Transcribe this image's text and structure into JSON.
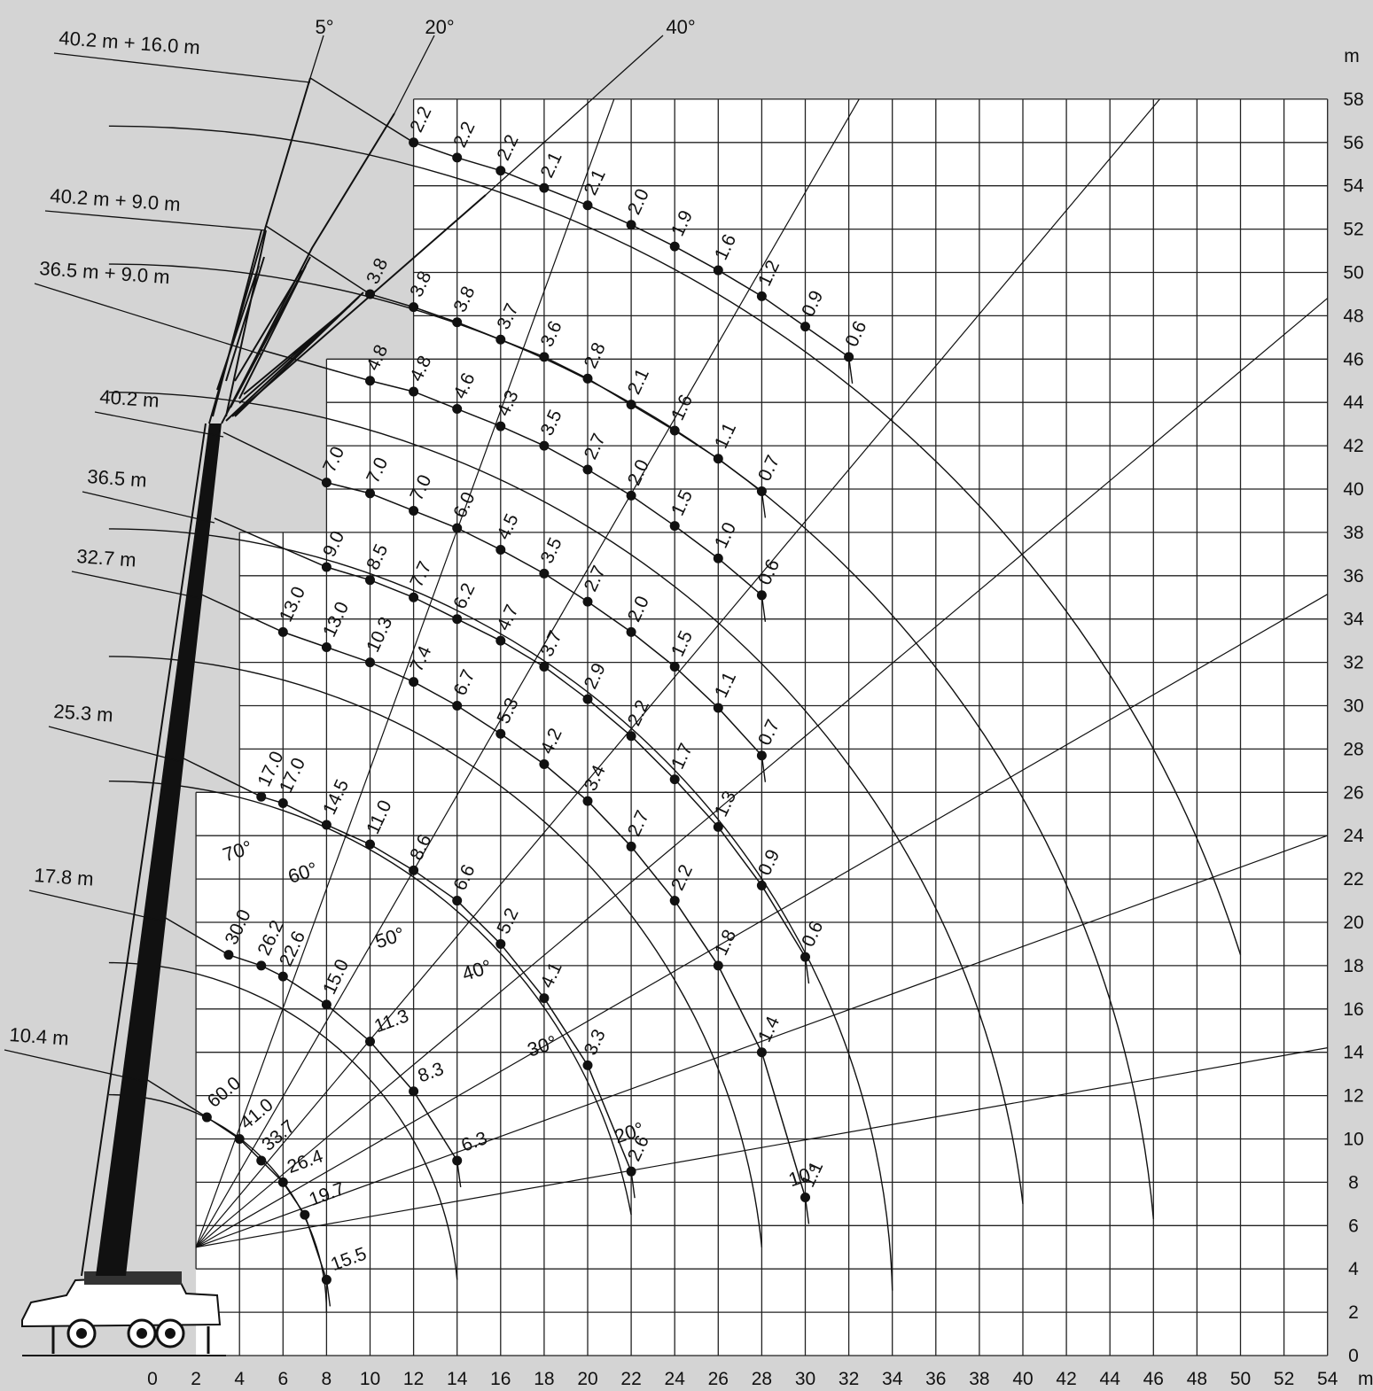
{
  "chart_data": {
    "type": "scatter",
    "title": "",
    "x_unit": "m",
    "y_unit": "m",
    "xlim": [
      0,
      54
    ],
    "ylim": [
      0,
      58
    ],
    "x_ticks": [
      "0",
      "2",
      "4",
      "6",
      "8",
      "10",
      "12",
      "14",
      "16",
      "18",
      "20",
      "22",
      "24",
      "26",
      "28",
      "30",
      "32",
      "34",
      "36",
      "38",
      "40",
      "42",
      "44",
      "46",
      "48",
      "50",
      "52",
      "54"
    ],
    "y_ticks": [
      "0",
      "2",
      "4",
      "6",
      "8",
      "10",
      "12",
      "14",
      "16",
      "18",
      "20",
      "22",
      "24",
      "26",
      "28",
      "30",
      "32",
      "34",
      "36",
      "38",
      "40",
      "42",
      "44",
      "46",
      "48",
      "50",
      "52",
      "54",
      "56",
      "58"
    ],
    "grid": true,
    "angle_lines": [
      {
        "label": "10°",
        "x": 30,
        "y": 8
      },
      {
        "label": "20°",
        "x": 22,
        "y": 10
      },
      {
        "label": "30°",
        "x": 18,
        "y": 14
      },
      {
        "label": "40°",
        "x": 15,
        "y": 17.5
      },
      {
        "label": "50°",
        "x": 11,
        "y": 19
      },
      {
        "label": "60°",
        "x": 7,
        "y": 22
      },
      {
        "label": "70°",
        "x": 4,
        "y": 23
      }
    ],
    "jib_angle_labels": [
      {
        "label": "5°",
        "x": 8,
        "y": 62
      },
      {
        "label": "20°",
        "x": 13,
        "y": 62
      },
      {
        "label": "40°",
        "x": 25,
        "y": 62
      }
    ],
    "series": [
      {
        "name": "10.4 m",
        "points": [
          {
            "x": 2.5,
            "y": 11,
            "label": "60.0"
          },
          {
            "x": 4,
            "y": 10,
            "label": "41.0"
          },
          {
            "x": 5,
            "y": 9,
            "label": "33.7"
          },
          {
            "x": 6,
            "y": 8,
            "label": "26.4"
          },
          {
            "x": 7,
            "y": 6.5,
            "label": "19.7"
          },
          {
            "x": 8,
            "y": 3.5,
            "label": "15.5"
          }
        ]
      },
      {
        "name": "17.8 m",
        "points": [
          {
            "x": 3.5,
            "y": 18.5,
            "label": "30.0"
          },
          {
            "x": 5,
            "y": 18,
            "label": "26.2"
          },
          {
            "x": 6,
            "y": 17.5,
            "label": "22.6"
          },
          {
            "x": 8,
            "y": 16.2,
            "label": "15.0"
          },
          {
            "x": 10,
            "y": 14.5,
            "label": "11.3"
          },
          {
            "x": 12,
            "y": 12.2,
            "label": "8.3"
          },
          {
            "x": 14,
            "y": 9,
            "label": "6.3"
          }
        ]
      },
      {
        "name": "25.3 m",
        "points": [
          {
            "x": 5,
            "y": 25.8,
            "label": "17.0"
          },
          {
            "x": 6,
            "y": 25.5,
            "label": "17.0"
          },
          {
            "x": 8,
            "y": 24.5,
            "label": "14.5"
          },
          {
            "x": 10,
            "y": 23.6,
            "label": "11.0"
          },
          {
            "x": 12,
            "y": 22.4,
            "label": "8.6"
          },
          {
            "x": 14,
            "y": 21,
            "label": "6.6"
          },
          {
            "x": 16,
            "y": 19,
            "label": "5.2"
          },
          {
            "x": 18,
            "y": 16.5,
            "label": "4.1"
          },
          {
            "x": 20,
            "y": 13.4,
            "label": "3.3"
          },
          {
            "x": 22,
            "y": 8.5,
            "label": "2.6"
          }
        ]
      },
      {
        "name": "32.7 m",
        "points": [
          {
            "x": 6,
            "y": 33.4,
            "label": "13.0"
          },
          {
            "x": 8,
            "y": 32.7,
            "label": "13.0"
          },
          {
            "x": 10,
            "y": 32,
            "label": "10.3"
          },
          {
            "x": 12,
            "y": 31.1,
            "label": "7.4"
          },
          {
            "x": 14,
            "y": 30,
            "label": "6.7"
          },
          {
            "x": 16,
            "y": 28.7,
            "label": "5.3"
          },
          {
            "x": 18,
            "y": 27.3,
            "label": "4.2"
          },
          {
            "x": 20,
            "y": 25.6,
            "label": "3.4"
          },
          {
            "x": 22,
            "y": 23.5,
            "label": "2.7"
          },
          {
            "x": 24,
            "y": 21,
            "label": "2.2"
          },
          {
            "x": 26,
            "y": 18,
            "label": "1.8"
          },
          {
            "x": 28,
            "y": 14,
            "label": "1.4"
          },
          {
            "x": 30,
            "y": 7.3,
            "label": "1.1"
          }
        ]
      },
      {
        "name": "36.5 m",
        "points": [
          {
            "x": 8,
            "y": 36.4,
            "label": "9.0"
          },
          {
            "x": 10,
            "y": 35.8,
            "label": "8.5"
          },
          {
            "x": 12,
            "y": 35,
            "label": "7.7"
          },
          {
            "x": 14,
            "y": 34,
            "label": "6.2"
          },
          {
            "x": 16,
            "y": 33,
            "label": "4.7"
          },
          {
            "x": 18,
            "y": 31.8,
            "label": "3.7"
          },
          {
            "x": 20,
            "y": 30.3,
            "label": "2.9"
          },
          {
            "x": 22,
            "y": 28.6,
            "label": "2.2"
          },
          {
            "x": 24,
            "y": 26.6,
            "label": "1.7"
          },
          {
            "x": 26,
            "y": 24.4,
            "label": "1.3"
          },
          {
            "x": 28,
            "y": 21.7,
            "label": "0.9"
          },
          {
            "x": 30,
            "y": 18.4,
            "label": "0.6"
          }
        ]
      },
      {
        "name": "40.2 m",
        "points": [
          {
            "x": 8,
            "y": 40.3,
            "label": "7.0"
          },
          {
            "x": 10,
            "y": 39.8,
            "label": "7.0"
          },
          {
            "x": 12,
            "y": 39,
            "label": "7.0"
          },
          {
            "x": 14,
            "y": 38.2,
            "label": "6.0"
          },
          {
            "x": 16,
            "y": 37.2,
            "label": "4.5"
          },
          {
            "x": 18,
            "y": 36.1,
            "label": "3.5"
          },
          {
            "x": 20,
            "y": 34.8,
            "label": "2.7"
          },
          {
            "x": 22,
            "y": 33.4,
            "label": "2.0"
          },
          {
            "x": 24,
            "y": 31.8,
            "label": "1.5"
          },
          {
            "x": 26,
            "y": 29.9,
            "label": "1.1"
          },
          {
            "x": 28,
            "y": 27.7,
            "label": "0.7"
          }
        ]
      },
      {
        "name": "36.5 m + 9.0 m",
        "points": [
          {
            "x": 10,
            "y": 45,
            "label": "4.8"
          },
          {
            "x": 12,
            "y": 44.5,
            "label": "4.8"
          },
          {
            "x": 14,
            "y": 43.7,
            "label": "4.6"
          },
          {
            "x": 16,
            "y": 42.9,
            "label": "4.3"
          },
          {
            "x": 18,
            "y": 42,
            "label": "3.5"
          },
          {
            "x": 20,
            "y": 40.9,
            "label": "2.7"
          },
          {
            "x": 22,
            "y": 39.7,
            "label": "2.0"
          },
          {
            "x": 24,
            "y": 38.3,
            "label": "1.5"
          },
          {
            "x": 26,
            "y": 36.8,
            "label": "1.0"
          },
          {
            "x": 28,
            "y": 35.1,
            "label": "0.6"
          }
        ]
      },
      {
        "name": "40.2 m + 9.0 m",
        "points": [
          {
            "x": 10,
            "y": 49,
            "label": "3.8"
          },
          {
            "x": 12,
            "y": 48.4,
            "label": "3.8"
          },
          {
            "x": 14,
            "y": 47.7,
            "label": "3.8"
          },
          {
            "x": 16,
            "y": 46.9,
            "label": "3.7"
          },
          {
            "x": 18,
            "y": 46.1,
            "label": "3.6"
          },
          {
            "x": 20,
            "y": 45.1,
            "label": "2.8"
          },
          {
            "x": 22,
            "y": 43.9,
            "label": "2.1"
          },
          {
            "x": 24,
            "y": 42.7,
            "label": "1.6"
          },
          {
            "x": 26,
            "y": 41.4,
            "label": "1.1"
          },
          {
            "x": 28,
            "y": 39.9,
            "label": "0.7"
          }
        ]
      },
      {
        "name": "40.2 m + 16.0 m",
        "points": [
          {
            "x": 12,
            "y": 56,
            "label": "2.2"
          },
          {
            "x": 14,
            "y": 55.3,
            "label": "2.2"
          },
          {
            "x": 16,
            "y": 54.7,
            "label": "2.2"
          },
          {
            "x": 18,
            "y": 53.9,
            "label": "2.1"
          },
          {
            "x": 20,
            "y": 53.1,
            "label": "2.1"
          },
          {
            "x": 22,
            "y": 52.2,
            "label": "2.0"
          },
          {
            "x": 24,
            "y": 51.2,
            "label": "1.9"
          },
          {
            "x": 26,
            "y": 50.1,
            "label": "1.6"
          },
          {
            "x": 28,
            "y": 48.9,
            "label": "1.2"
          },
          {
            "x": 30,
            "y": 47.5,
            "label": "0.9"
          },
          {
            "x": 32,
            "y": 46.1,
            "label": "0.6"
          }
        ]
      }
    ]
  }
}
